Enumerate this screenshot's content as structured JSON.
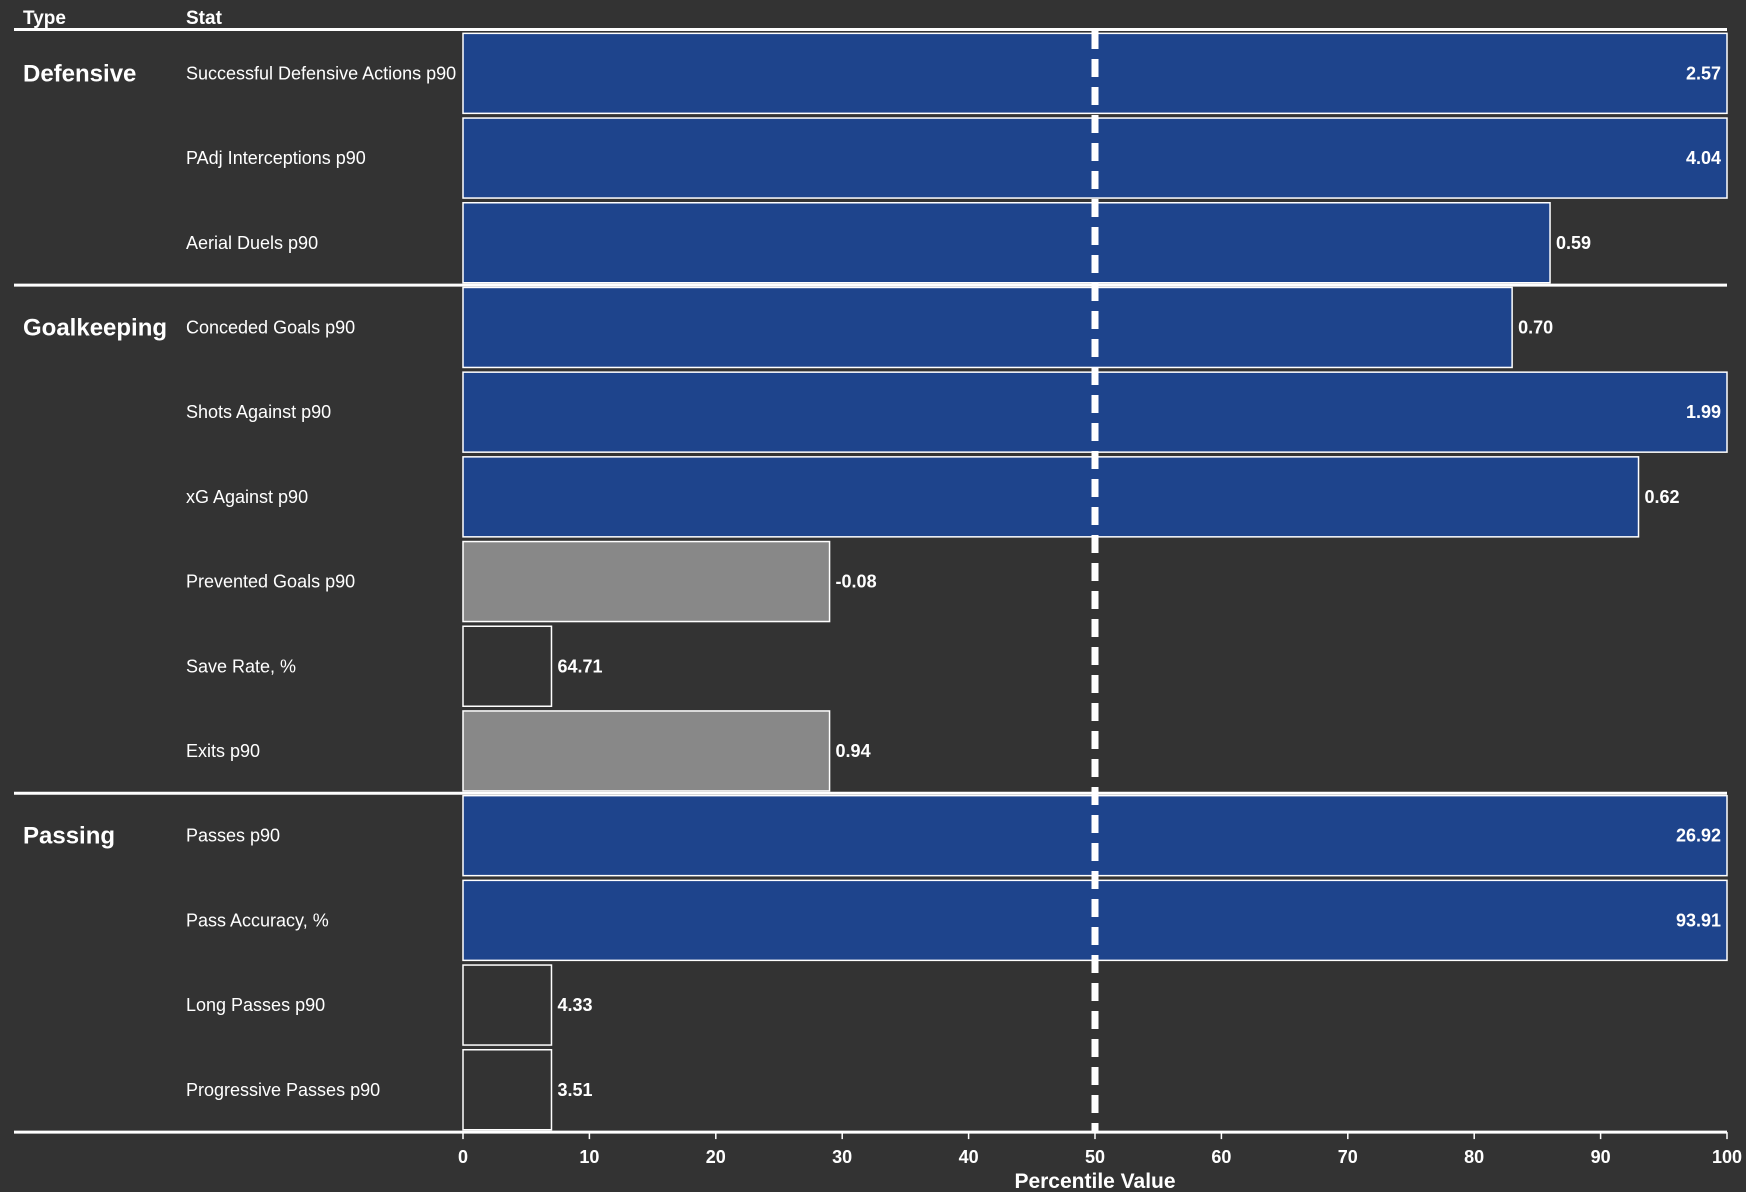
{
  "chart_data": {
    "type": "bar",
    "orientation": "horizontal",
    "headers": {
      "type": "Type",
      "stat": "Stat"
    },
    "xlabel": "Percentile Value",
    "xlim": [
      0,
      100
    ],
    "xticks": [
      "0",
      "10",
      "20",
      "30",
      "40",
      "50",
      "60",
      "70",
      "80",
      "90",
      "100"
    ],
    "reference_line": 50,
    "colors": {
      "background": "#333333",
      "above": "#1e448c",
      "mid": "#888888",
      "low": "#333333",
      "border": "#ffffff"
    },
    "groups": [
      {
        "name": "Defensive",
        "rows": [
          {
            "stat": "Successful Defensive Actions p90",
            "percentile": 100,
            "value_label": "2.57"
          },
          {
            "stat": "PAdj Interceptions p90",
            "percentile": 100,
            "value_label": "4.04"
          },
          {
            "stat": "Aerial Duels p90",
            "percentile": 86,
            "value_label": "0.59"
          }
        ]
      },
      {
        "name": "Goalkeeping",
        "rows": [
          {
            "stat": "Conceded Goals p90",
            "percentile": 83,
            "value_label": "0.70"
          },
          {
            "stat": "Shots Against p90",
            "percentile": 100,
            "value_label": "1.99"
          },
          {
            "stat": "xG Against p90",
            "percentile": 93,
            "value_label": "0.62"
          },
          {
            "stat": "Prevented Goals p90",
            "percentile": 29,
            "value_label": "-0.08"
          },
          {
            "stat": "Save Rate, %",
            "percentile": 7,
            "value_label": "64.71"
          },
          {
            "stat": "Exits p90",
            "percentile": 29,
            "value_label": "0.94"
          }
        ]
      },
      {
        "name": "Passing",
        "rows": [
          {
            "stat": "Passes p90",
            "percentile": 100,
            "value_label": "26.92"
          },
          {
            "stat": "Pass Accuracy, %",
            "percentile": 100,
            "value_label": "93.91"
          },
          {
            "stat": "Long Passes p90",
            "percentile": 7,
            "value_label": "4.33"
          },
          {
            "stat": "Progressive Passes p90",
            "percentile": 7,
            "value_label": "3.51"
          }
        ]
      }
    ]
  }
}
